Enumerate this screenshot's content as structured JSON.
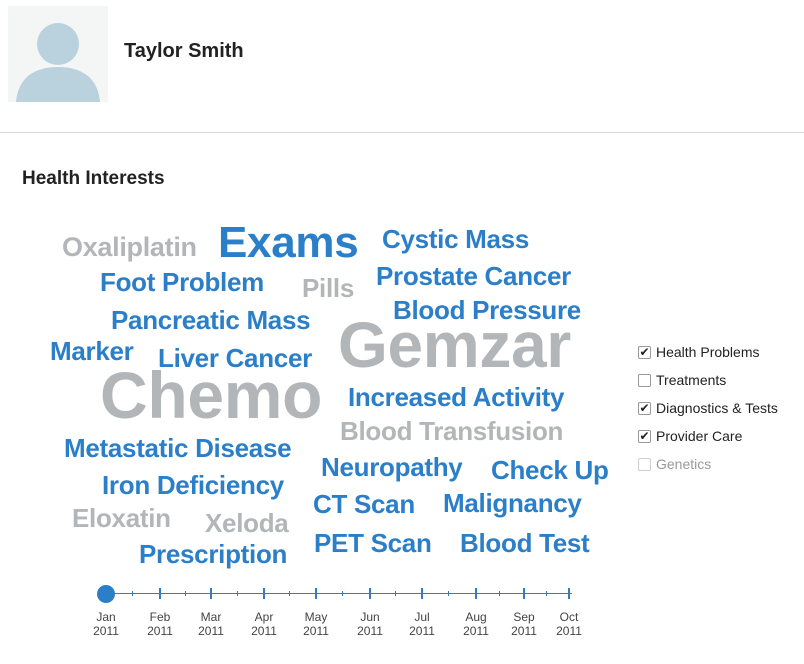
{
  "profile": {
    "name": "Taylor Smith"
  },
  "section": {
    "title": "Health Interests"
  },
  "word_cloud": [
    {
      "text": "Oxaliplatin",
      "category": "treatment"
    },
    {
      "text": "Exams",
      "category": "provider"
    },
    {
      "text": "Cystic Mass",
      "category": "problem"
    },
    {
      "text": "Foot Problem",
      "category": "problem"
    },
    {
      "text": "Pills",
      "category": "treatment"
    },
    {
      "text": "Prostate Cancer",
      "category": "problem"
    },
    {
      "text": "Blood Pressure",
      "category": "diagnostic"
    },
    {
      "text": "Pancreatic Mass",
      "category": "problem"
    },
    {
      "text": "Gemzar",
      "category": "treatment"
    },
    {
      "text": "Marker",
      "category": "diagnostic"
    },
    {
      "text": "Liver Cancer",
      "category": "problem"
    },
    {
      "text": "Chemo",
      "category": "treatment"
    },
    {
      "text": "Increased Activity",
      "category": "problem"
    },
    {
      "text": "Blood Transfusion",
      "category": "treatment"
    },
    {
      "text": "Metastatic Disease",
      "category": "problem"
    },
    {
      "text": "Neuropathy",
      "category": "problem"
    },
    {
      "text": "Check Up",
      "category": "provider"
    },
    {
      "text": "Iron Deficiency",
      "category": "problem"
    },
    {
      "text": "Eloxatin",
      "category": "treatment"
    },
    {
      "text": "Xeloda",
      "category": "treatment"
    },
    {
      "text": "CT Scan",
      "category": "diagnostic"
    },
    {
      "text": "Malignancy",
      "category": "problem"
    },
    {
      "text": "Prescription",
      "category": "provider"
    },
    {
      "text": "PET Scan",
      "category": "diagnostic"
    },
    {
      "text": "Blood Test",
      "category": "diagnostic"
    }
  ],
  "filters": [
    {
      "label": "Health Problems",
      "checked": true,
      "disabled": false
    },
    {
      "label": "Treatments",
      "checked": false,
      "disabled": false
    },
    {
      "label": "Diagnostics & Tests",
      "checked": true,
      "disabled": false
    },
    {
      "label": "Provider Care",
      "checked": true,
      "disabled": false
    },
    {
      "label": "Genetics",
      "checked": false,
      "disabled": true
    }
  ],
  "timeline": {
    "selected_index": 0,
    "months": [
      {
        "month": "Jan",
        "year": "2011"
      },
      {
        "month": "Feb",
        "year": "2011"
      },
      {
        "month": "Mar",
        "year": "2011"
      },
      {
        "month": "Apr",
        "year": "2011"
      },
      {
        "month": "May",
        "year": "2011"
      },
      {
        "month": "Jun",
        "year": "2011"
      },
      {
        "month": "Jul",
        "year": "2011"
      },
      {
        "month": "Aug",
        "year": "2011"
      },
      {
        "month": "Sep",
        "year": "2011"
      },
      {
        "month": "Oct",
        "year": "2011"
      }
    ]
  },
  "colors": {
    "active_term": "#2b7fc9",
    "inactive_term": "#b3b6b8",
    "avatar": "#b9d2de"
  }
}
